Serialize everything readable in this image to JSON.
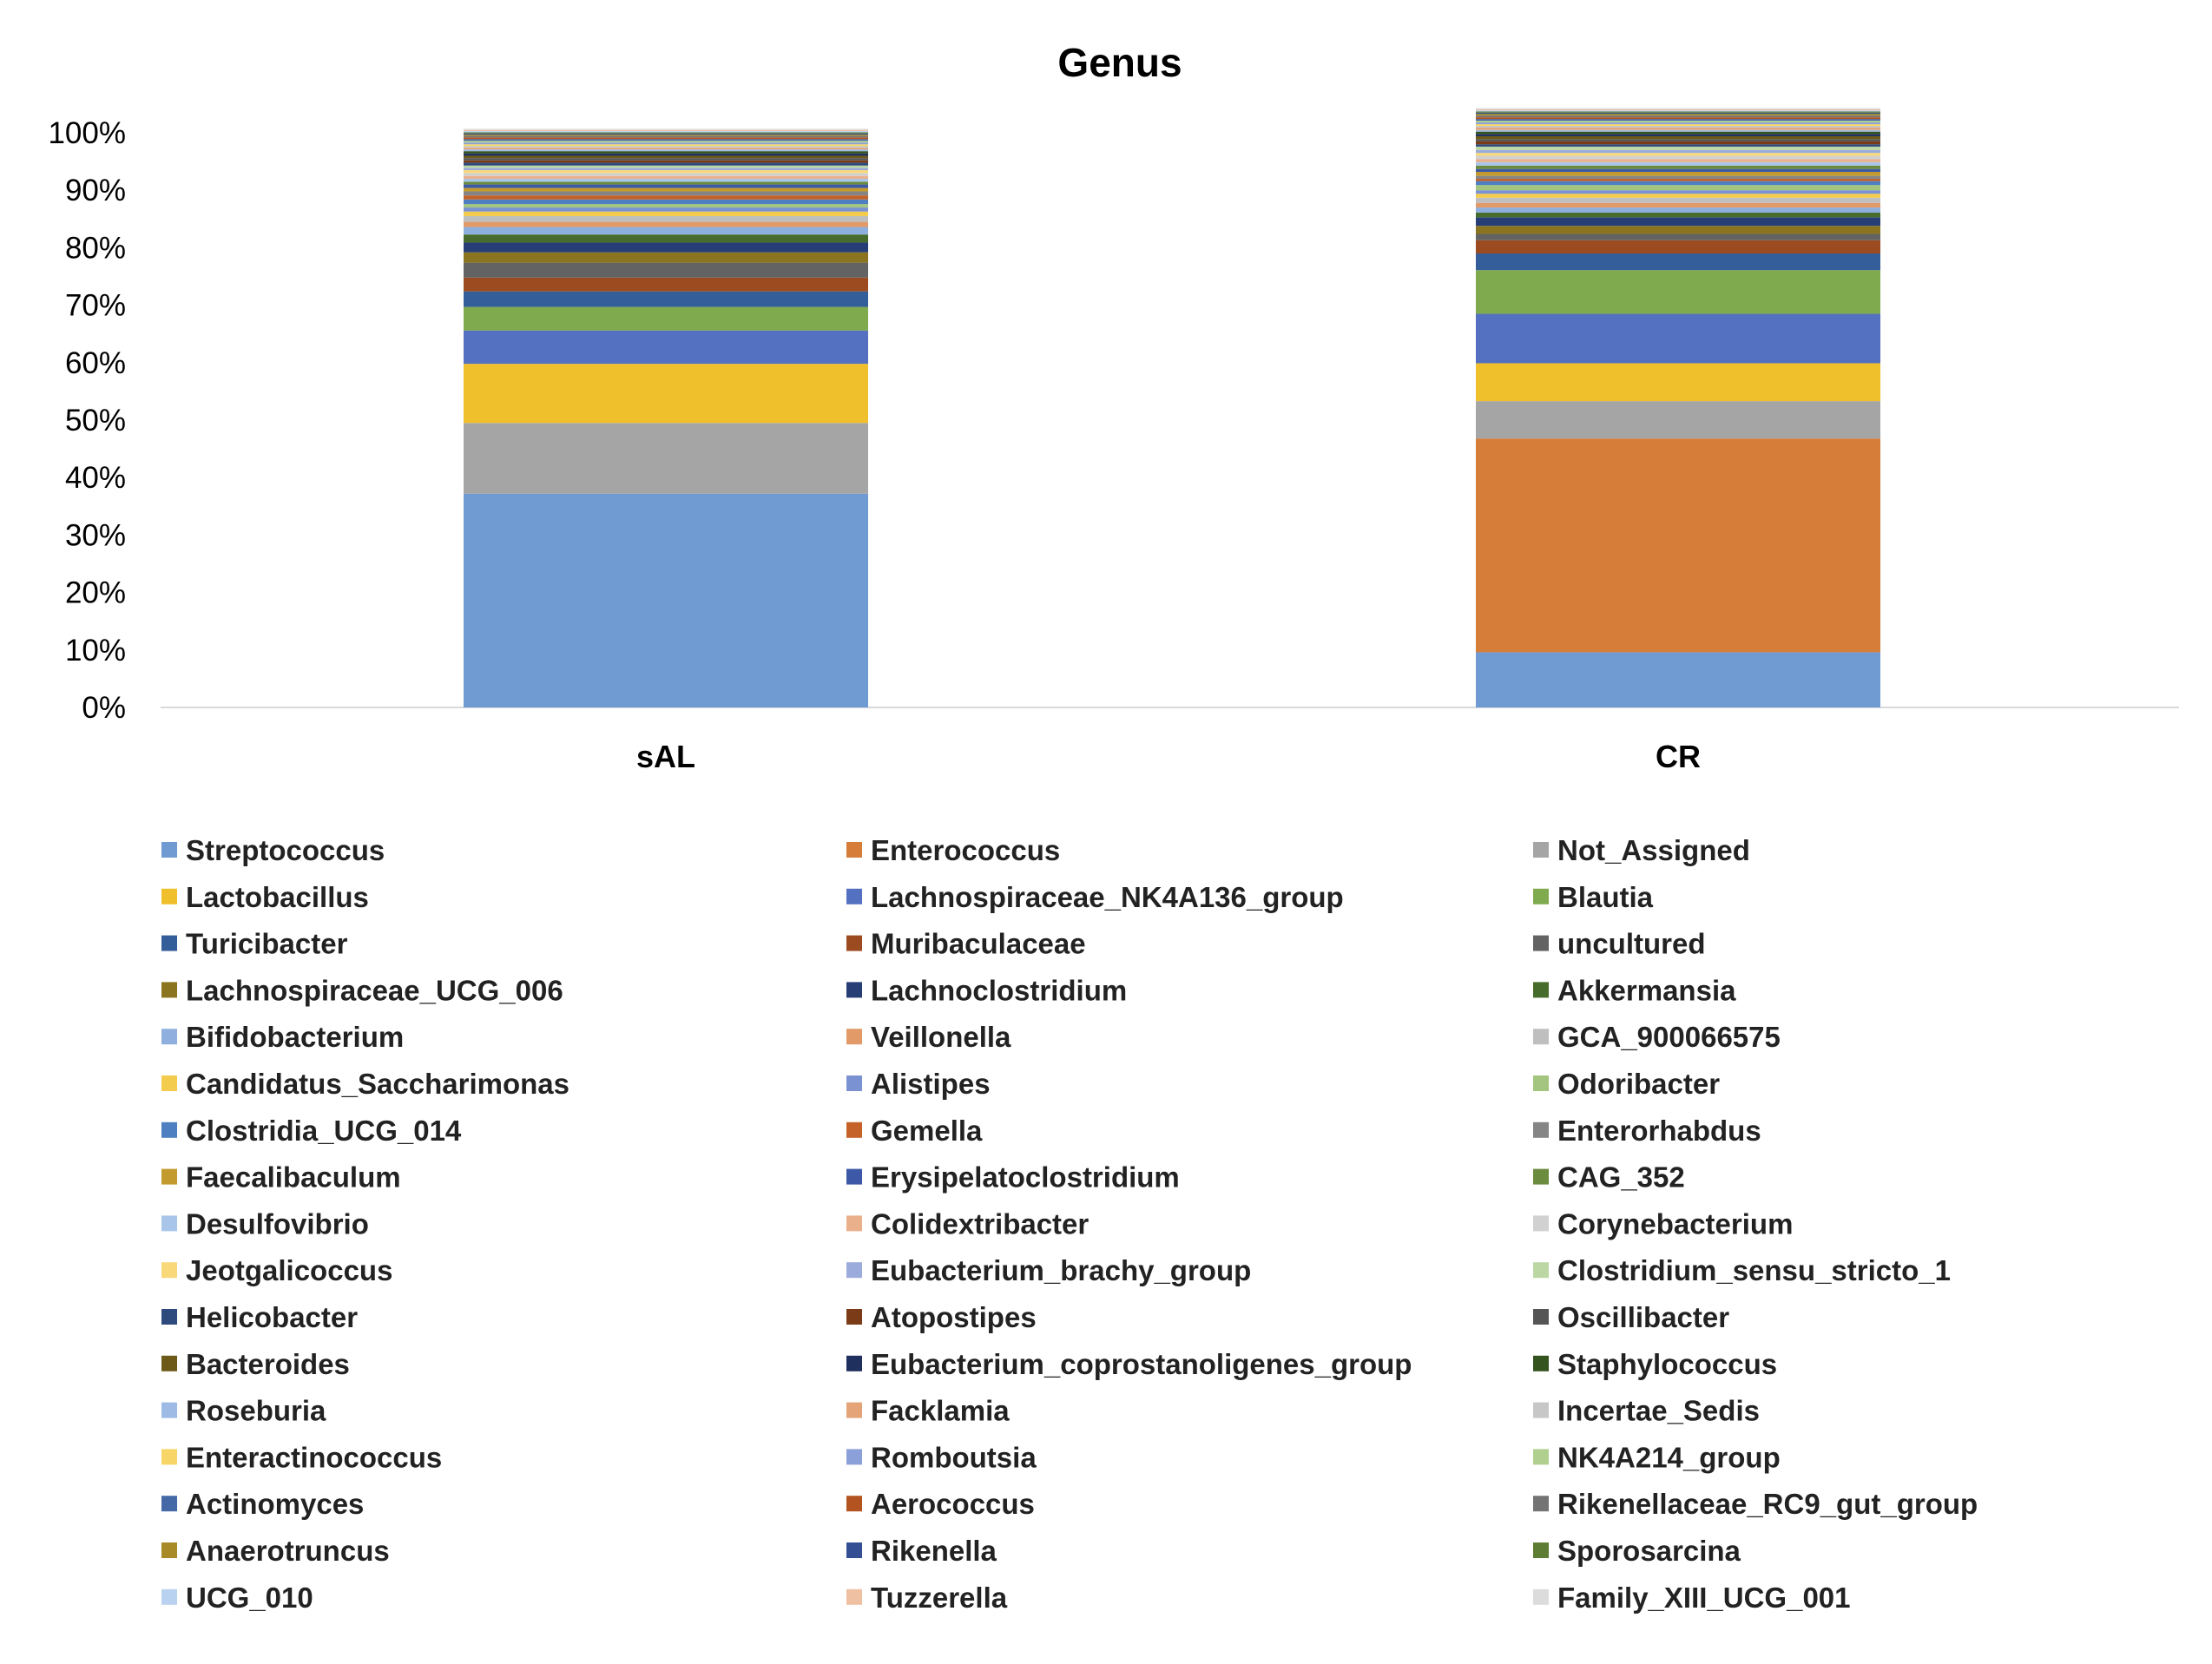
{
  "chart_data": {
    "type": "bar",
    "stacked": true,
    "percent": true,
    "title": "Genus",
    "categories": [
      "sAL",
      "CR"
    ],
    "yticks": [
      "0%",
      "10%",
      "20%",
      "30%",
      "40%",
      "50%",
      "60%",
      "70%",
      "80%",
      "90%",
      "100%"
    ],
    "ylim": [
      0,
      100
    ],
    "grid": false,
    "legend_position": "bottom",
    "series": [
      {
        "name": "Streptococcus",
        "color": "#6f9ad2",
        "values": [
          37.2,
          9.6
        ]
      },
      {
        "name": "Enterococcus",
        "color": "#d57d39",
        "values": [
          0,
          37.2
        ]
      },
      {
        "name": "Not_Assigned",
        "color": "#a5a5a5",
        "values": [
          12.3,
          6.5
        ]
      },
      {
        "name": "Lactobacillus",
        "color": "#f0bf2c",
        "values": [
          10.3,
          6.6
        ]
      },
      {
        "name": "Lachnospiraceae_NK4A136_group",
        "color": "#5470c1",
        "values": [
          5.8,
          8.6
        ]
      },
      {
        "name": "Blautia",
        "color": "#7faa4e",
        "values": [
          4.1,
          7.6
        ]
      },
      {
        "name": "Turicibacter",
        "color": "#345e9a",
        "values": [
          2.7,
          2.9
        ]
      },
      {
        "name": "Muribaculaceae",
        "color": "#9c4a1f",
        "values": [
          2.4,
          2.3
        ]
      },
      {
        "name": "uncultured",
        "color": "#636363",
        "values": [
          2.6,
          1.1
        ]
      },
      {
        "name": "Lachnospiraceae_UCG_006",
        "color": "#8b7420",
        "values": [
          1.8,
          1.4
        ]
      },
      {
        "name": "Lachnoclostridium",
        "color": "#263e75",
        "values": [
          1.7,
          1.5
        ]
      },
      {
        "name": "Akkermansia",
        "color": "#466b2a",
        "values": [
          1.4,
          0.8
        ]
      },
      {
        "name": "Bifidobacterium",
        "color": "#8fb0df",
        "values": [
          1.3,
          0.9
        ]
      },
      {
        "name": "Veillonella",
        "color": "#e19a68",
        "values": [
          0.9,
          0.8
        ]
      },
      {
        "name": "GCA_900066575",
        "color": "#bfbfbf",
        "values": [
          1.0,
          0.9
        ]
      },
      {
        "name": "Candidatus_Saccharimonas",
        "color": "#f4cc4d",
        "values": [
          0.8,
          0.7
        ]
      },
      {
        "name": "Alistipes",
        "color": "#7a92d1",
        "values": [
          0.7,
          0.6
        ]
      },
      {
        "name": "Odoribacter",
        "color": "#a4c57f",
        "values": [
          0.6,
          0.9
        ]
      },
      {
        "name": "Clostridia_UCG_014",
        "color": "#4e7fc0",
        "values": [
          0.8,
          0.7
        ]
      },
      {
        "name": "Gemella",
        "color": "#c4622a",
        "values": [
          0.7,
          0.4
        ]
      },
      {
        "name": "Enterorhabdus",
        "color": "#858585",
        "values": [
          0.7,
          0.5
        ]
      },
      {
        "name": "Faecalibaculum",
        "color": "#c29a2e",
        "values": [
          0.6,
          0.7
        ]
      },
      {
        "name": "Erysipelatoclostridium",
        "color": "#3d58a6",
        "values": [
          0.6,
          0.5
        ]
      },
      {
        "name": "CAG_352",
        "color": "#6b8c3f",
        "values": [
          0.5,
          0.6
        ]
      },
      {
        "name": "Desulfovibrio",
        "color": "#a9c6ea",
        "values": [
          0.5,
          0.6
        ]
      },
      {
        "name": "Colidextribacter",
        "color": "#eab08c",
        "values": [
          0.5,
          0.5
        ]
      },
      {
        "name": "Corynebacterium",
        "color": "#d1d1d1",
        "values": [
          0.5,
          0.6
        ]
      },
      {
        "name": "Jeotgalicoccus",
        "color": "#f8d879",
        "values": [
          0.5,
          0.5
        ]
      },
      {
        "name": "Eubacterium_brachy_group",
        "color": "#9babdb",
        "values": [
          0.4,
          0.5
        ]
      },
      {
        "name": "Clostridium_sensu_stricto_1",
        "color": "#bcd7a3",
        "values": [
          0.4,
          0.6
        ]
      },
      {
        "name": "Helicobacter",
        "color": "#2f4a7c",
        "values": [
          0.5,
          0.4
        ]
      },
      {
        "name": "Atopostipes",
        "color": "#7b3b16",
        "values": [
          0.4,
          0.5
        ]
      },
      {
        "name": "Oscillibacter",
        "color": "#555555",
        "values": [
          0.4,
          0.4
        ]
      },
      {
        "name": "Bacteroides",
        "color": "#6e5a18",
        "values": [
          0.4,
          0.5
        ]
      },
      {
        "name": "Eubacterium_coprostanoligenes_group",
        "color": "#1f2f5e",
        "values": [
          0.4,
          0.4
        ]
      },
      {
        "name": "Staphylococcus",
        "color": "#35531f",
        "values": [
          0.4,
          0.4
        ]
      },
      {
        "name": "Roseburia",
        "color": "#9dbbe5",
        "values": [
          0.3,
          0.3
        ]
      },
      {
        "name": "Facklamia",
        "color": "#e4a478",
        "values": [
          0.3,
          0.4
        ]
      },
      {
        "name": "Incertae_Sedis",
        "color": "#c7c7c7",
        "values": [
          0.3,
          0.3
        ]
      },
      {
        "name": "Enteractinococcus",
        "color": "#f7d566",
        "values": [
          0.3,
          0.3
        ]
      },
      {
        "name": "Romboutsia",
        "color": "#8ba0d8",
        "values": [
          0.3,
          0.3
        ]
      },
      {
        "name": "NK4A214_group",
        "color": "#b1d08f",
        "values": [
          0.3,
          0.3
        ]
      },
      {
        "name": "Actinomyces",
        "color": "#4569a6",
        "values": [
          0.3,
          0.3
        ]
      },
      {
        "name": "Aerococcus",
        "color": "#b3531f",
        "values": [
          0.3,
          0.3
        ]
      },
      {
        "name": "Rikenellaceae_RC9_gut_group",
        "color": "#747474",
        "values": [
          0.3,
          0.3
        ]
      },
      {
        "name": "Anaerotruncus",
        "color": "#a88a28",
        "values": [
          0.2,
          0.3
        ]
      },
      {
        "name": "Rikenella",
        "color": "#344f94",
        "values": [
          0.2,
          0.2
        ]
      },
      {
        "name": "Sporosarcina",
        "color": "#5d7d35",
        "values": [
          0.2,
          0.2
        ]
      },
      {
        "name": "UCG_010",
        "color": "#b9d2ef",
        "values": [
          0.2,
          0.2
        ]
      },
      {
        "name": "Tuzzerella",
        "color": "#efc1a2",
        "values": [
          0.2,
          0.2
        ]
      },
      {
        "name": "Family_XIII_UCG_001",
        "color": "#dcdcdc",
        "values": [
          0.2,
          0.2
        ]
      }
    ]
  }
}
